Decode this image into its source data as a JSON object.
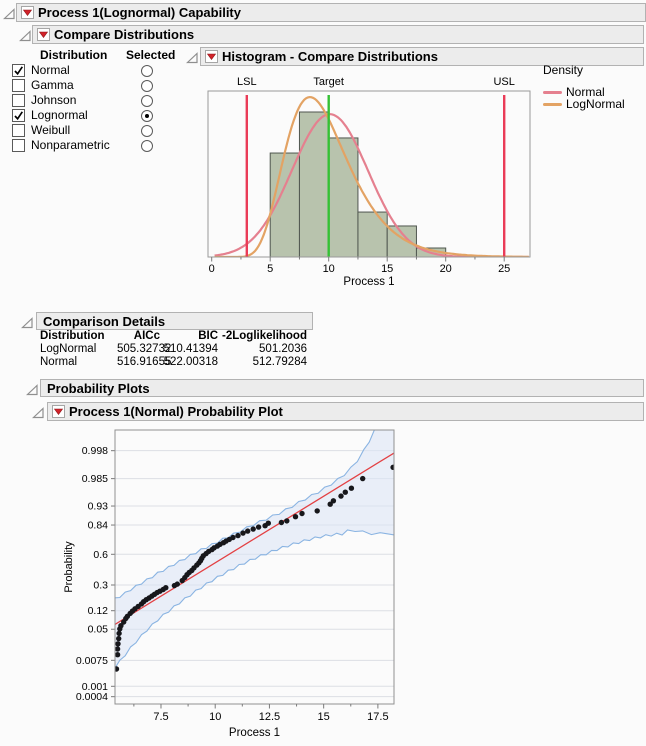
{
  "sections": {
    "capability": {
      "title": "Process 1(Lognormal) Capability"
    },
    "compare": {
      "title": "Compare Distributions"
    },
    "histogram": {
      "title": "Histogram - Compare Distributions"
    },
    "comparison_details": {
      "title": "Comparison Details"
    },
    "probability_plots": {
      "title": "Probability Plots"
    },
    "normal_prob_plot": {
      "title": "Process 1(Normal) Probability Plot"
    }
  },
  "distribution_panel": {
    "col_headers": [
      "Distribution",
      "Selected"
    ],
    "rows": [
      {
        "label": "Normal",
        "checked": true,
        "selected": false
      },
      {
        "label": "Gamma",
        "checked": false,
        "selected": false
      },
      {
        "label": "Johnson",
        "checked": false,
        "selected": false
      },
      {
        "label": "Lognormal",
        "checked": true,
        "selected": true
      },
      {
        "label": "Weibull",
        "checked": false,
        "selected": false
      },
      {
        "label": "Nonparametric",
        "checked": false,
        "selected": false
      }
    ]
  },
  "comparison_table": {
    "columns": [
      "Distribution",
      "AICc",
      "BIC",
      "-2Loglikelihood"
    ],
    "rows": [
      [
        "LogNormal",
        "505.32732",
        "510.41394",
        "501.2036"
      ],
      [
        "Normal",
        "516.91655",
        "522.00318",
        "512.79284"
      ]
    ]
  },
  "colors": {
    "header_bar": "#ececec",
    "bar_fill": "#b8c3ad",
    "bar_stroke": "#4f564f",
    "spec_red": "#ea3b57",
    "target_green": "#35c135",
    "normal_curve": "#e5808f",
    "lognormal_curve": "#e3a364",
    "band_fill": "#dbe3f6",
    "band_edge": "#8ab4e2",
    "fit_line": "#e34043",
    "red_triangle": "#d2232a"
  },
  "chart_data": [
    {
      "id": "histogram-compare-distributions",
      "type": "bar",
      "subtype": "histogram-with-density",
      "title": "Histogram - Compare Distributions",
      "xlabel": "Process 1",
      "ylabel": "",
      "xlim": [
        -0.7,
        27.2
      ],
      "x_ticks": [
        0,
        5,
        10,
        15,
        20,
        25
      ],
      "x_minor_ticks": [
        2.5,
        7.5,
        12.5,
        17.5,
        22.5
      ],
      "bin_edges": [
        5,
        7.5,
        10,
        12.5,
        15,
        17.5,
        20
      ],
      "bin_rel_heights": [
        0.717,
        1.0,
        0.821,
        0.31,
        0.214,
        0.062
      ],
      "spec_limits": [
        {
          "label": "LSL",
          "value": 3,
          "color": "#ea3b57"
        },
        {
          "label": "Target",
          "value": 10,
          "color": "#35c135"
        },
        {
          "label": "USL",
          "value": 25,
          "color": "#ea3b57"
        }
      ],
      "curves": [
        {
          "name": "Normal",
          "shape": "normal",
          "mean": 10.1,
          "sd": 3.25,
          "rel_peak": 0.985,
          "color": "#e5808f"
        },
        {
          "name": "LogNormal",
          "shape": "lognormal",
          "mu": 2.23,
          "sigma": 0.32,
          "rel_peak": 1.103,
          "color": "#e3a364"
        }
      ],
      "legend": {
        "title": "Density",
        "position": "right",
        "entries": [
          {
            "label": "Normal",
            "color": "#e5808f"
          },
          {
            "label": "LogNormal",
            "color": "#e3a364"
          }
        ]
      }
    },
    {
      "id": "normal-probability-plot",
      "type": "scatter",
      "subtype": "normal-probability-plot",
      "title": "Process 1(Normal) Probability Plot",
      "xlabel": "Process 1",
      "ylabel": "Probability",
      "y_scale": "normal-quantile",
      "grid": true,
      "xlim": [
        5.38,
        18.25
      ],
      "x_ticks": [
        7.5,
        10,
        12.5,
        15,
        17.5
      ],
      "x_minor_ticks": [
        6.25,
        8.75,
        11.25,
        13.75,
        16.25
      ],
      "y_tick_labels": [
        "0.998",
        "0.985",
        "0.93",
        "0.84",
        "0.6",
        "0.3",
        "0.12",
        "0.05",
        "0.0075",
        "0.001",
        "0.0004"
      ],
      "fit_line": {
        "x1": 5.38,
        "p1": 0.064,
        "x2": 18.25,
        "p2": 0.9976,
        "color": "#e34043"
      },
      "band": {
        "fill": "#dbe3f6",
        "edge": "#8ab4e2",
        "upper": [
          [
            5.38,
            0.19
          ],
          [
            5.6,
            0.208
          ],
          [
            5.85,
            0.232
          ],
          [
            6.1,
            0.262
          ],
          [
            6.35,
            0.288
          ],
          [
            6.6,
            0.318
          ],
          [
            6.85,
            0.345
          ],
          [
            7.1,
            0.378
          ],
          [
            7.35,
            0.41
          ],
          [
            7.6,
            0.44
          ],
          [
            7.85,
            0.468
          ],
          [
            8.1,
            0.5
          ],
          [
            8.35,
            0.528
          ],
          [
            8.6,
            0.558
          ],
          [
            8.85,
            0.588
          ],
          [
            9.1,
            0.617
          ],
          [
            9.35,
            0.642
          ],
          [
            9.6,
            0.667
          ],
          [
            9.85,
            0.69
          ],
          [
            10.1,
            0.713
          ],
          [
            10.35,
            0.737
          ],
          [
            10.6,
            0.757
          ],
          [
            10.85,
            0.777
          ],
          [
            11.15,
            0.8
          ],
          [
            11.45,
            0.822
          ],
          [
            11.75,
            0.842
          ],
          [
            12.05,
            0.859
          ],
          [
            12.35,
            0.874
          ],
          [
            12.65,
            0.889
          ],
          [
            12.95,
            0.902
          ],
          [
            13.25,
            0.916
          ],
          [
            13.55,
            0.929
          ],
          [
            13.85,
            0.941
          ],
          [
            14.15,
            0.951
          ],
          [
            14.45,
            0.959
          ],
          [
            14.75,
            0.966
          ],
          [
            15.05,
            0.973
          ],
          [
            15.35,
            0.979
          ],
          [
            15.65,
            0.984
          ],
          [
            15.95,
            0.9885
          ],
          [
            16.25,
            0.9925
          ],
          [
            16.55,
            0.9957
          ],
          [
            16.85,
            0.998
          ],
          [
            17.1,
            0.9991
          ],
          [
            17.35,
            0.99965
          ]
        ],
        "lower": [
          [
            5.38,
            0.0046
          ],
          [
            5.6,
            0.007
          ],
          [
            5.85,
            0.011
          ],
          [
            6.1,
            0.017
          ],
          [
            6.35,
            0.025
          ],
          [
            6.6,
            0.035
          ],
          [
            6.85,
            0.048
          ],
          [
            7.1,
            0.062
          ],
          [
            7.35,
            0.08
          ],
          [
            7.6,
            0.098
          ],
          [
            7.85,
            0.118
          ],
          [
            8.1,
            0.14
          ],
          [
            8.35,
            0.165
          ],
          [
            8.6,
            0.19
          ],
          [
            8.85,
            0.218
          ],
          [
            9.1,
            0.248
          ],
          [
            9.35,
            0.278
          ],
          [
            9.6,
            0.308
          ],
          [
            9.85,
            0.34
          ],
          [
            10.1,
            0.37
          ],
          [
            10.35,
            0.4
          ],
          [
            10.6,
            0.43
          ],
          [
            10.85,
            0.458
          ],
          [
            11.1,
            0.487
          ],
          [
            11.35,
            0.513
          ],
          [
            11.6,
            0.538
          ],
          [
            11.85,
            0.562
          ],
          [
            12.1,
            0.585
          ],
          [
            12.35,
            0.606
          ],
          [
            12.6,
            0.627
          ],
          [
            12.85,
            0.646
          ],
          [
            13.1,
            0.664
          ],
          [
            13.35,
            0.68
          ],
          [
            13.6,
            0.696
          ],
          [
            13.85,
            0.71
          ],
          [
            14.1,
            0.723
          ],
          [
            14.35,
            0.735
          ],
          [
            14.6,
            0.747
          ],
          [
            14.85,
            0.757
          ],
          [
            15.1,
            0.765
          ],
          [
            15.35,
            0.771
          ],
          [
            15.6,
            0.776
          ],
          [
            15.85,
            0.779
          ],
          [
            16.1,
            0.8
          ],
          [
            16.45,
            0.805
          ],
          [
            16.8,
            0.793
          ],
          [
            17.2,
            0.782
          ],
          [
            17.6,
            0.78
          ],
          [
            18.25,
            0.78
          ]
        ]
      },
      "points": [
        [
          5.45,
          0.004
        ],
        [
          5.5,
          0.011
        ],
        [
          5.5,
          0.016
        ],
        [
          5.52,
          0.022
        ],
        [
          5.55,
          0.03
        ],
        [
          5.57,
          0.04
        ],
        [
          5.6,
          0.051
        ],
        [
          5.65,
          0.06
        ],
        [
          5.78,
          0.072
        ],
        [
          5.88,
          0.085
        ],
        [
          5.95,
          0.094
        ],
        [
          6.08,
          0.107
        ],
        [
          6.18,
          0.118
        ],
        [
          6.3,
          0.13
        ],
        [
          6.45,
          0.143
        ],
        [
          6.6,
          0.158
        ],
        [
          6.7,
          0.172
        ],
        [
          6.82,
          0.185
        ],
        [
          6.95,
          0.197
        ],
        [
          7.08,
          0.21
        ],
        [
          7.2,
          0.224
        ],
        [
          7.32,
          0.237
        ],
        [
          7.45,
          0.248
        ],
        [
          7.6,
          0.262
        ],
        [
          7.72,
          0.277
        ],
        [
          8.12,
          0.295
        ],
        [
          8.25,
          0.308
        ],
        [
          8.48,
          0.34
        ],
        [
          8.6,
          0.368
        ],
        [
          8.7,
          0.396
        ],
        [
          8.8,
          0.418
        ],
        [
          8.92,
          0.438
        ],
        [
          9.02,
          0.464
        ],
        [
          9.15,
          0.492
        ],
        [
          9.25,
          0.514
        ],
        [
          9.32,
          0.536
        ],
        [
          9.38,
          0.56
        ],
        [
          9.45,
          0.585
        ],
        [
          9.58,
          0.607
        ],
        [
          9.7,
          0.628
        ],
        [
          9.85,
          0.645
        ],
        [
          9.95,
          0.662
        ],
        [
          10.1,
          0.678
        ],
        [
          10.22,
          0.694
        ],
        [
          10.38,
          0.708
        ],
        [
          10.5,
          0.722
        ],
        [
          10.65,
          0.736
        ],
        [
          10.82,
          0.751
        ],
        [
          11.05,
          0.766
        ],
        [
          11.28,
          0.785
        ],
        [
          11.5,
          0.8
        ],
        [
          11.75,
          0.814
        ],
        [
          12.0,
          0.827
        ],
        [
          12.3,
          0.836
        ],
        [
          12.45,
          0.851
        ],
        [
          13.05,
          0.855
        ],
        [
          13.3,
          0.864
        ],
        [
          13.7,
          0.886
        ],
        [
          14.0,
          0.901
        ],
        [
          14.7,
          0.912
        ],
        [
          15.3,
          0.936
        ],
        [
          15.45,
          0.946
        ],
        [
          15.8,
          0.958
        ],
        [
          16.0,
          0.966
        ],
        [
          16.28,
          0.973
        ],
        [
          16.8,
          0.985
        ],
        [
          18.2,
          0.993
        ]
      ]
    }
  ]
}
